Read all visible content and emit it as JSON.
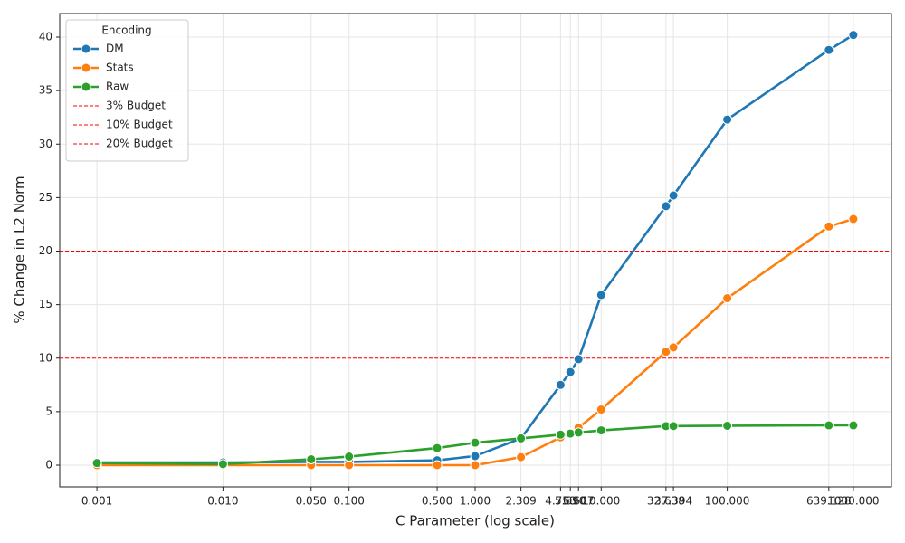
{
  "chart_data": {
    "type": "line",
    "xlabel": "C Parameter (log scale)",
    "ylabel": "% Change in L2 Norm",
    "xscale": "log",
    "grid": true,
    "legend_title": "Encoding",
    "legend_loc": "upper left",
    "x": [
      0.001,
      0.01,
      0.05,
      0.1,
      0.5,
      1,
      2.309,
      4.758,
      5.69,
      6.607,
      10,
      32.638,
      37.394,
      100,
      639.128,
      1000
    ],
    "series": [
      {
        "name": "DM",
        "color": "#1f77b4",
        "values": [
          0.25,
          0.25,
          0.3,
          0.3,
          0.45,
          0.85,
          2.5,
          7.5,
          8.7,
          9.9,
          15.9,
          24.2,
          25.2,
          32.3,
          38.8,
          40.2
        ]
      },
      {
        "name": "Stats",
        "color": "#ff7f0e",
        "values": [
          0,
          0,
          0,
          0,
          0,
          0,
          0.75,
          2.6,
          3.0,
          3.5,
          5.2,
          10.6,
          11.0,
          15.6,
          22.3,
          23.0
        ]
      },
      {
        "name": "Raw",
        "color": "#2ca02c",
        "values": [
          0.2,
          0.1,
          0.55,
          0.8,
          1.6,
          2.1,
          2.5,
          2.85,
          2.95,
          3.05,
          3.25,
          3.65,
          3.65,
          3.68,
          3.72,
          3.72
        ]
      }
    ],
    "hlines": [
      {
        "value": 3,
        "label": "3% Budget",
        "color": "#ff0000"
      },
      {
        "value": 10,
        "label": "10% Budget",
        "color": "#ff0000"
      },
      {
        "value": 20,
        "label": "20% Budget",
        "color": "#ff0000"
      }
    ],
    "xlim": [
      0.000507,
      2005
    ],
    "ylim": [
      -2.03,
      42.2
    ],
    "xticks": [
      {
        "value": 0.001,
        "label": "0.001"
      },
      {
        "value": 0.01,
        "label": "0.010"
      },
      {
        "value": 0.05,
        "label": "0.050"
      },
      {
        "value": 0.1,
        "label": "0.100"
      },
      {
        "value": 0.5,
        "label": "0.500"
      },
      {
        "value": 1,
        "label": "1.000"
      },
      {
        "value": 2.309,
        "label": "2.309"
      },
      {
        "value": 4.758,
        "label": "4.758"
      },
      {
        "value": 5.69,
        "label": "5.690"
      },
      {
        "value": 6.607,
        "label": "6.607"
      },
      {
        "value": 10,
        "label": "10.000"
      },
      {
        "value": 32.638,
        "label": "32.638"
      },
      {
        "value": 37.394,
        "label": "37.394"
      },
      {
        "value": 100,
        "label": "100.000"
      },
      {
        "value": 639.128,
        "label": "639.128"
      },
      {
        "value": 1000,
        "label": "1000.000"
      }
    ],
    "yticks": [
      0,
      5,
      10,
      15,
      20,
      25,
      30,
      35,
      40
    ]
  }
}
